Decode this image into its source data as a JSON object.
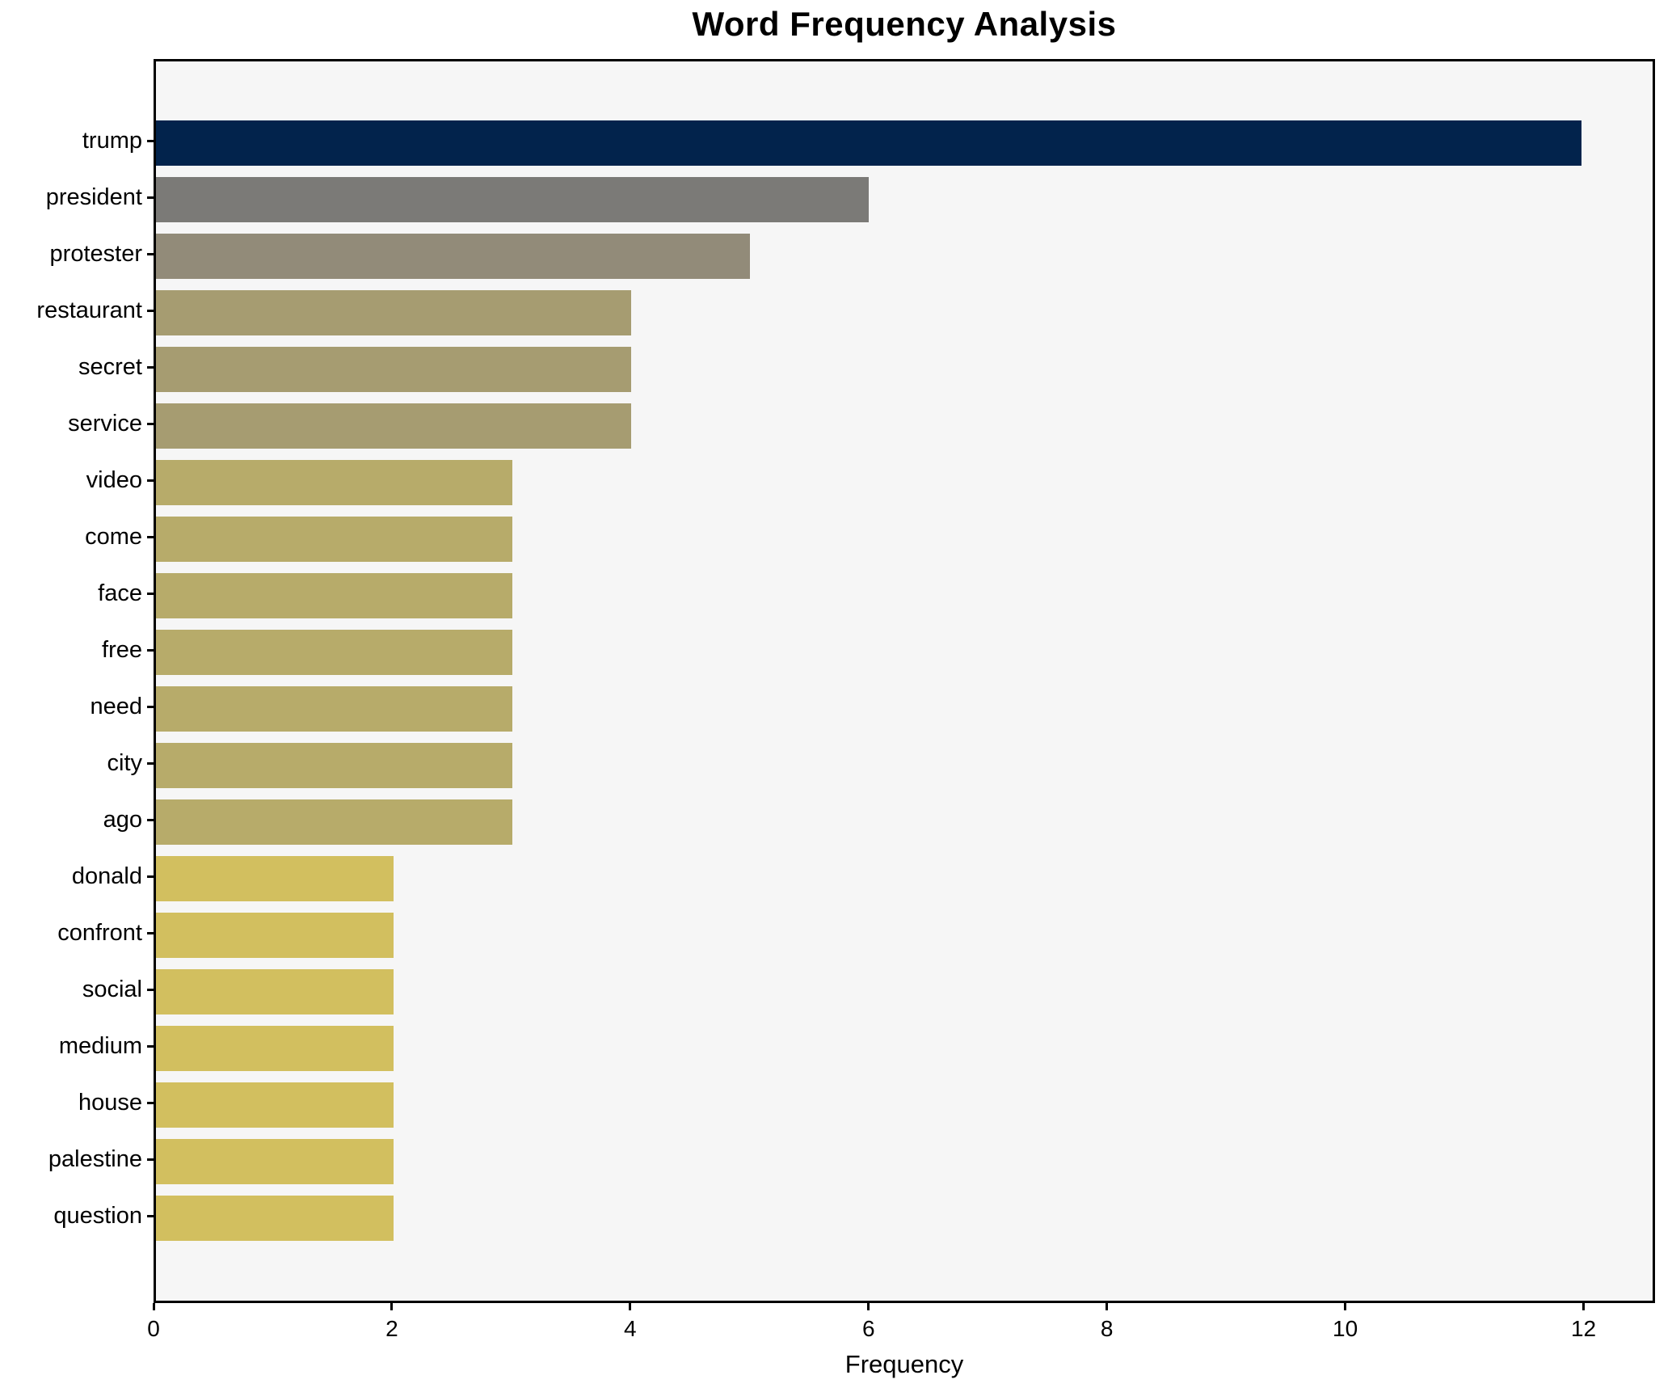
{
  "title": "Word Frequency Analysis",
  "chart_data": {
    "type": "bar",
    "orientation": "horizontal",
    "title": "Word Frequency Analysis",
    "xlabel": "Frequency",
    "ylabel": "",
    "categories": [
      "trump",
      "president",
      "protester",
      "restaurant",
      "secret",
      "service",
      "video",
      "come",
      "face",
      "free",
      "need",
      "city",
      "ago",
      "donald",
      "confront",
      "social",
      "medium",
      "house",
      "palestine",
      "question"
    ],
    "values": [
      12,
      6,
      5,
      4,
      4,
      4,
      3,
      3,
      3,
      3,
      3,
      3,
      3,
      2,
      2,
      2,
      2,
      2,
      2,
      2
    ],
    "bar_colors": [
      "#02234c",
      "#7b7a77",
      "#928b79",
      "#a69c71",
      "#a69c71",
      "#a69c71",
      "#b7ab6a",
      "#b7ab6a",
      "#b7ab6a",
      "#b7ab6a",
      "#b7ab6a",
      "#b7ab6a",
      "#b7ab6a",
      "#d2bf5f",
      "#d2bf5f",
      "#d2bf5f",
      "#d2bf5f",
      "#d2bf5f",
      "#d2bf5f",
      "#d2bf5f"
    ],
    "xlim": [
      0,
      12.6
    ],
    "xticks": [
      0,
      2,
      4,
      6,
      8,
      10,
      12
    ],
    "grid": false,
    "legend": "none",
    "plot_background": "#f6f6f6",
    "spine_color": "#000000",
    "colormap": "cividis (high=dark navy, low=gold)"
  }
}
